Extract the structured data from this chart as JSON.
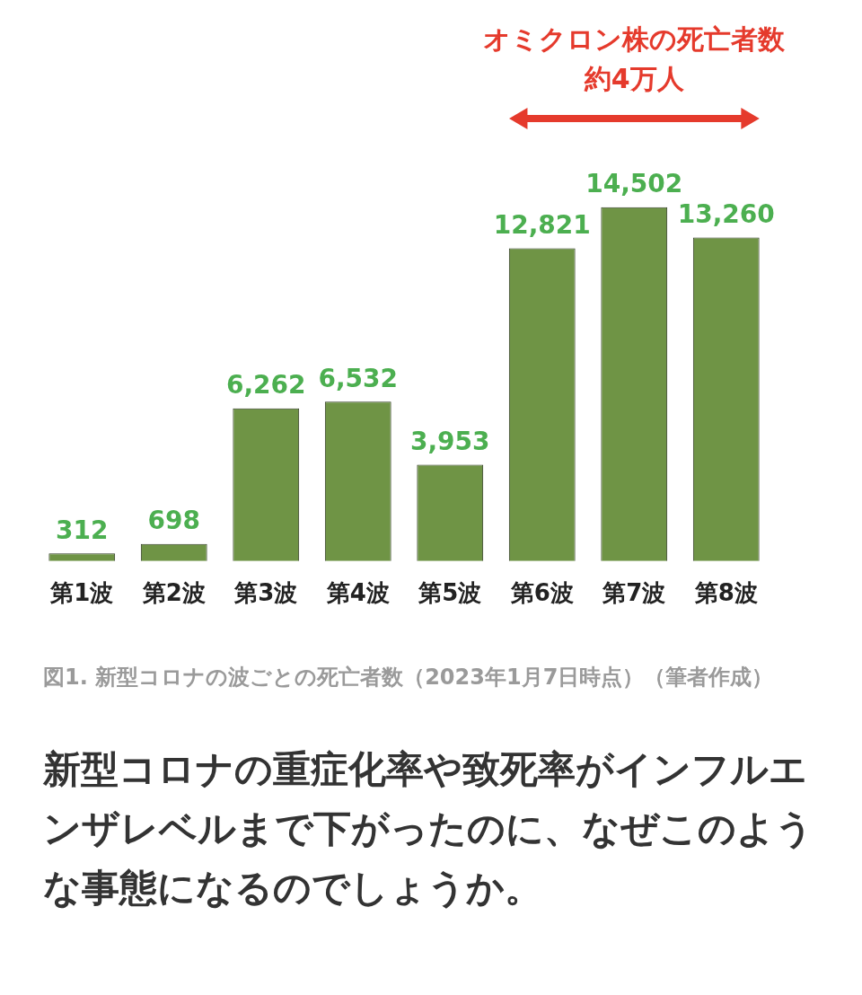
{
  "chart_data": {
    "type": "bar",
    "categories": [
      "第1波",
      "第2波",
      "第3波",
      "第4波",
      "第5波",
      "第6波",
      "第7波",
      "第8波"
    ],
    "values": [
      312,
      698,
      6262,
      6532,
      3953,
      12821,
      14502,
      13260
    ],
    "color": "#6f9445",
    "value_labels": [
      "312",
      "698",
      "6,262",
      "6,532",
      "3,953",
      "12,821",
      "14,502",
      "13,260"
    ],
    "grid": false,
    "legend": false,
    "annotations": [
      "オミクロン株の死亡者数",
      "約4万人",
      "図1. 新型コロナの波ごとの死亡者数（2023年1月7日時点）（筆者作成）",
      "新型コロナの重症化率や致死率がインフルエンザレベルまで下がったのに、なぜこのような事態になるのでしょうか。"
    ]
  }
}
